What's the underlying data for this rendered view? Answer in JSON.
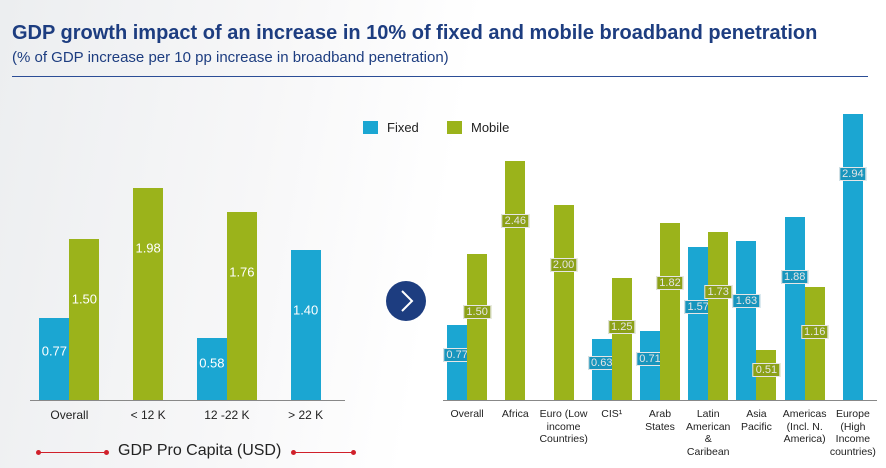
{
  "header": {
    "title": "GDP growth impact of an increase in 10% of fixed and mobile broadband penetration",
    "subtitle": "(% of GDP increase per 10 pp increase in broadband penetration)"
  },
  "chart_data": [
    {
      "type": "bar",
      "categories": [
        "Overall",
        "< 12 K",
        "12 -22 K",
        "> 22 K"
      ],
      "series": [
        {
          "name": "Fixed",
          "color": "#1ba6d2",
          "values": [
            0.77,
            null,
            0.58,
            1.4
          ],
          "value_labels": [
            "0.77",
            null,
            "0.58",
            "1.40"
          ]
        },
        {
          "name": "Mobile",
          "color": "#9bb31b",
          "values": [
            1.5,
            1.98,
            1.76,
            null
          ],
          "value_labels": [
            "1.50",
            "1.98",
            "1.76",
            null
          ]
        }
      ],
      "xlabel": "GDP Pro Capita (USD)"
    },
    {
      "type": "bar",
      "categories": [
        "Overall",
        "Africa",
        "Euro (Low income Countries)",
        "CIS¹",
        "Arab States",
        "Latin American & Caribean",
        "Asia Pacific",
        "Americas (Incl. N. America)",
        "Europe (High Income countries)"
      ],
      "series": [
        {
          "name": "Fixed",
          "color": "#1ba6d2",
          "values": [
            0.77,
            null,
            null,
            0.63,
            0.71,
            1.57,
            1.63,
            1.88,
            2.94
          ],
          "value_labels": [
            "0.77",
            null,
            null,
            "0.63",
            "0.71",
            "1.57",
            "1.63",
            "1.88",
            "2.94"
          ]
        },
        {
          "name": "Mobile",
          "color": "#9bb31b",
          "values": [
            1.5,
            2.46,
            2.0,
            1.25,
            1.82,
            1.73,
            0.51,
            1.16,
            null
          ],
          "value_labels": [
            "1.50",
            "2.46",
            "2.00",
            "1.25",
            "1.82",
            "1.73",
            "0.51",
            "1.16",
            null
          ]
        }
      ],
      "legend_position": "top-left"
    }
  ]
}
